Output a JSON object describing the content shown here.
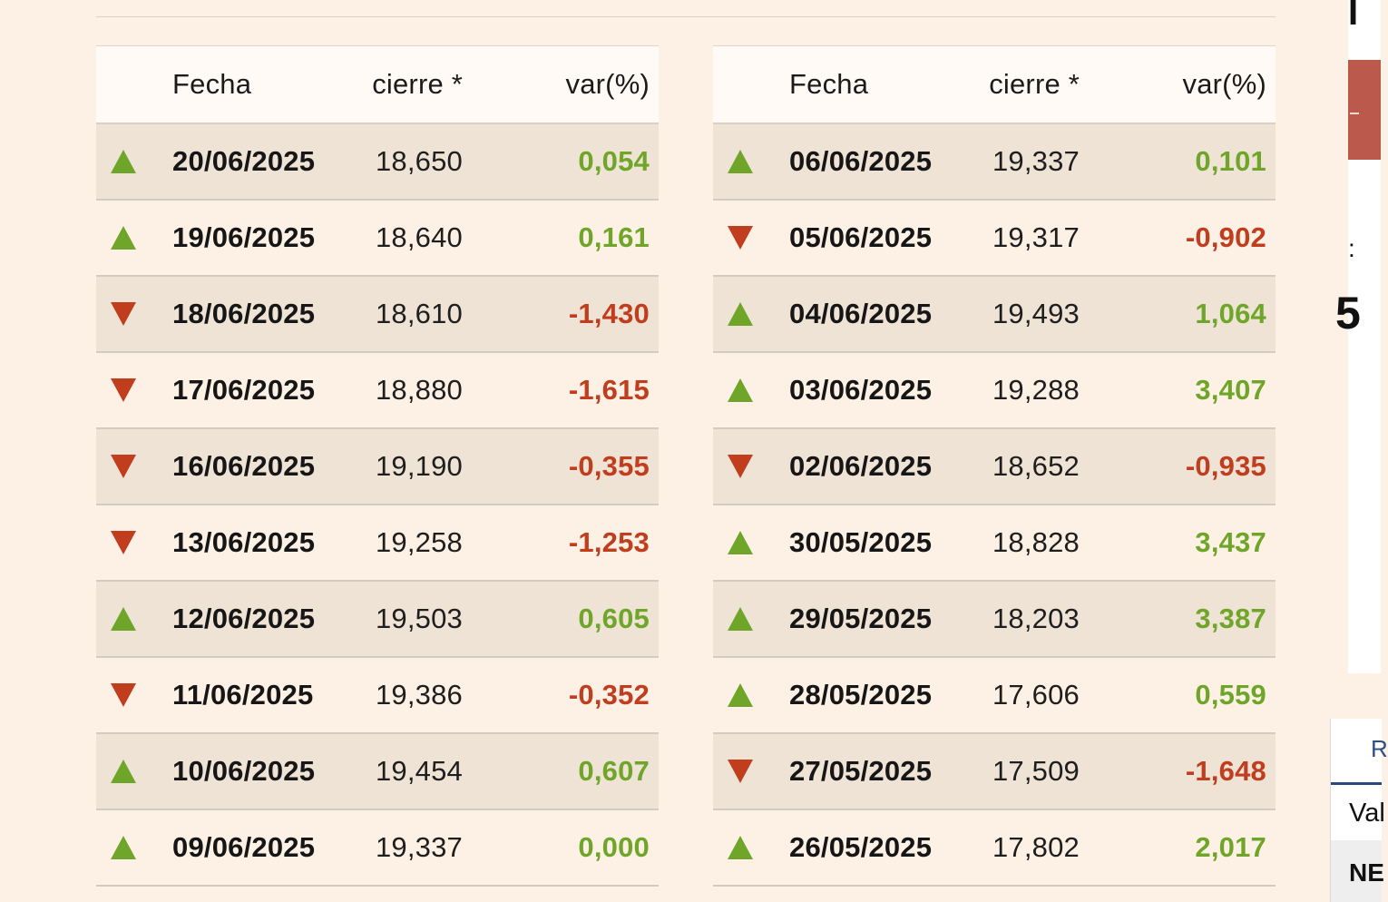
{
  "headers": {
    "date": "Fecha",
    "close": "cierre *",
    "var": "var(%)"
  },
  "colors": {
    "up": "#6fa62a",
    "down": "#c03d1e",
    "background": "#fdf0e4",
    "row_shade": "#efe3d6"
  },
  "left_table": [
    {
      "date": "20/06/2025",
      "close": "18,650",
      "var": "0,054",
      "dir": "up"
    },
    {
      "date": "19/06/2025",
      "close": "18,640",
      "var": "0,161",
      "dir": "up"
    },
    {
      "date": "18/06/2025",
      "close": "18,610",
      "var": "-1,430",
      "dir": "down"
    },
    {
      "date": "17/06/2025",
      "close": "18,880",
      "var": "-1,615",
      "dir": "down"
    },
    {
      "date": "16/06/2025",
      "close": "19,190",
      "var": "-0,355",
      "dir": "down"
    },
    {
      "date": "13/06/2025",
      "close": "19,258",
      "var": "-1,253",
      "dir": "down"
    },
    {
      "date": "12/06/2025",
      "close": "19,503",
      "var": "0,605",
      "dir": "up"
    },
    {
      "date": "11/06/2025",
      "close": "19,386",
      "var": "-0,352",
      "dir": "down"
    },
    {
      "date": "10/06/2025",
      "close": "19,454",
      "var": "0,607",
      "dir": "up"
    },
    {
      "date": "09/06/2025",
      "close": "19,337",
      "var": "0,000",
      "dir": "up"
    }
  ],
  "right_table": [
    {
      "date": "06/06/2025",
      "close": "19,337",
      "var": "0,101",
      "dir": "up"
    },
    {
      "date": "05/06/2025",
      "close": "19,317",
      "var": "-0,902",
      "dir": "down"
    },
    {
      "date": "04/06/2025",
      "close": "19,493",
      "var": "1,064",
      "dir": "up"
    },
    {
      "date": "03/06/2025",
      "close": "19,288",
      "var": "3,407",
      "dir": "up"
    },
    {
      "date": "02/06/2025",
      "close": "18,652",
      "var": "-0,935",
      "dir": "down"
    },
    {
      "date": "30/05/2025",
      "close": "18,828",
      "var": "3,437",
      "dir": "up"
    },
    {
      "date": "29/05/2025",
      "close": "18,203",
      "var": "3,387",
      "dir": "up"
    },
    {
      "date": "28/05/2025",
      "close": "17,606",
      "var": "0,559",
      "dir": "up"
    },
    {
      "date": "27/05/2025",
      "close": "17,509",
      "var": "-1,648",
      "dir": "down"
    },
    {
      "date": "26/05/2025",
      "close": "17,802",
      "var": "2,017",
      "dir": "up"
    }
  ],
  "edge": {
    "glyph_1": "I",
    "glyph_colon": ":",
    "glyph_5": "5",
    "tab_letter": "R",
    "tab_value": "Val",
    "tab_ne": "NE"
  }
}
